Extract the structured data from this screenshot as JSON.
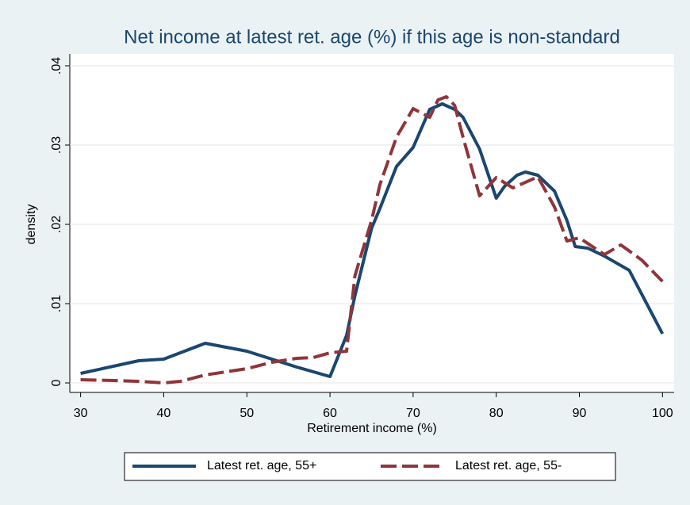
{
  "chart_data": {
    "type": "line",
    "title": "Net income at latest ret. age (%) if this age is non-standard",
    "x_label": "Retirement income (%)",
    "y_label": "density",
    "xlim": [
      28.7,
      101.4
    ],
    "ylim": [
      -0.0012,
      0.0415
    ],
    "xticks": [
      30,
      40,
      50,
      60,
      70,
      80,
      90,
      100
    ],
    "yticks": [
      0,
      {
        "value": 0.01,
        "label": ".01"
      },
      {
        "value": 0.02,
        "label": ".02"
      },
      {
        "value": 0.03,
        "label": ".03"
      },
      {
        "value": 0.04,
        "label": ".04"
      }
    ],
    "grid": true,
    "series": [
      {
        "name": "Latest ret. age, 55+",
        "color": "#1a476f",
        "style": "solid",
        "x": [
          30,
          37,
          40,
          45,
          50,
          56,
          60,
          62,
          63,
          65,
          66,
          68,
          70,
          72,
          73.5,
          75,
          76,
          78,
          80,
          81,
          82.5,
          83.5,
          85,
          87,
          88.5,
          89.5,
          91,
          93,
          96,
          100
        ],
        "values": [
          0.0012,
          0.0028,
          0.003,
          0.005,
          0.004,
          0.002,
          0.0008,
          0.006,
          0.011,
          0.0195,
          0.022,
          0.0273,
          0.0297,
          0.0345,
          0.0352,
          0.0345,
          0.0335,
          0.0295,
          0.0233,
          0.0248,
          0.0262,
          0.0266,
          0.0262,
          0.0242,
          0.0205,
          0.0172,
          0.017,
          0.016,
          0.0142,
          0.0062
        ]
      },
      {
        "name": "Latest ret. age, 55-",
        "color": "#90353b",
        "style": "dashed",
        "x": [
          30,
          34,
          37,
          40,
          42,
          45,
          50,
          53,
          56,
          58,
          60,
          62,
          63,
          65,
          66,
          68,
          70,
          72,
          73,
          74,
          75,
          76,
          78,
          80,
          82,
          85,
          87,
          88.5,
          90,
          93,
          95,
          97.5,
          100
        ],
        "values": [
          0.0004,
          0.0003,
          0.0002,
          0.0,
          0.0002,
          0.001,
          0.0018,
          0.0026,
          0.0031,
          0.0032,
          0.0038,
          0.004,
          0.0135,
          0.0205,
          0.025,
          0.031,
          0.0346,
          0.0335,
          0.0357,
          0.0361,
          0.035,
          0.031,
          0.0236,
          0.0259,
          0.0246,
          0.026,
          0.0222,
          0.0179,
          0.0183,
          0.0162,
          0.0174,
          0.0155,
          0.0128
        ]
      }
    ]
  }
}
